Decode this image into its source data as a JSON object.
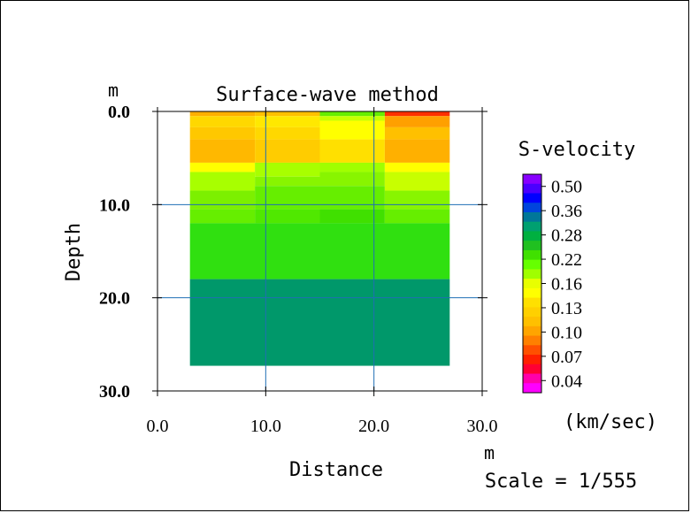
{
  "chart_data": {
    "type": "heatmap",
    "title": "Surface-wave method",
    "xlabel": "Distance",
    "ylabel": "Depth",
    "x_unit": "m",
    "y_unit": "m",
    "xlim": [
      0,
      30
    ],
    "ylim": [
      0,
      30
    ],
    "x_ticks": [
      "0.0",
      "10.0",
      "20.0",
      "30.0"
    ],
    "y_ticks": [
      "0.0",
      "10.0",
      "20.0",
      "30.0"
    ],
    "legend_title": "S-velocity",
    "legend_unit": "(km/sec)",
    "legend_labels": [
      "0.50",
      "0.36",
      "0.28",
      "0.22",
      "0.16",
      "0.13",
      "0.10",
      "0.07",
      "0.04"
    ],
    "legend_colors": [
      "#8800ff",
      "#4a00ff",
      "#0000ff",
      "#0044dd",
      "#007799",
      "#00a070",
      "#00b040",
      "#20c020",
      "#40e000",
      "#66ff00",
      "#a0ff00",
      "#e8ff00",
      "#ffff00",
      "#ffe000",
      "#ffd000",
      "#ffc000",
      "#ffa500",
      "#ff8000",
      "#ff5000",
      "#ff2000",
      "#ff0033",
      "#ff00aa",
      "#ff00ff"
    ],
    "scale_text": "Scale = 1/555",
    "cells": [
      {
        "x0": 3,
        "x1": 9,
        "y0": 0,
        "y1": 0.5,
        "color": "#ffb000"
      },
      {
        "x0": 3,
        "x1": 9,
        "y0": 0.5,
        "y1": 1.7,
        "color": "#ffd800"
      },
      {
        "x0": 3,
        "x1": 9,
        "y0": 1.7,
        "y1": 3.0,
        "color": "#ffc800"
      },
      {
        "x0": 3,
        "x1": 9,
        "y0": 3.0,
        "y1": 5.5,
        "color": "#ffb800"
      },
      {
        "x0": 3,
        "x1": 9,
        "y0": 5.5,
        "y1": 6.5,
        "color": "#ffff00"
      },
      {
        "x0": 3,
        "x1": 9,
        "y0": 6.5,
        "y1": 8.5,
        "color": "#a8ff00"
      },
      {
        "x0": 3,
        "x1": 9,
        "y0": 8.5,
        "y1": 10.5,
        "color": "#7cf000"
      },
      {
        "x0": 3,
        "x1": 9,
        "y0": 10.5,
        "y1": 12.0,
        "color": "#66ee00"
      },
      {
        "x0": 9,
        "x1": 15,
        "y0": 0,
        "y1": 0.5,
        "color": "#ffc000"
      },
      {
        "x0": 9,
        "x1": 15,
        "y0": 0.5,
        "y1": 1.7,
        "color": "#ffe800"
      },
      {
        "x0": 9,
        "x1": 15,
        "y0": 1.7,
        "y1": 3.0,
        "color": "#ffd800"
      },
      {
        "x0": 9,
        "x1": 15,
        "y0": 3.0,
        "y1": 5.5,
        "color": "#ffcc00"
      },
      {
        "x0": 9,
        "x1": 15,
        "y0": 5.5,
        "y1": 7.0,
        "color": "#a8ff00"
      },
      {
        "x0": 9,
        "x1": 15,
        "y0": 7.0,
        "y1": 8.0,
        "color": "#88f500"
      },
      {
        "x0": 9,
        "x1": 15,
        "y0": 8.0,
        "y1": 10.5,
        "color": "#66ee00"
      },
      {
        "x0": 9,
        "x1": 15,
        "y0": 10.5,
        "y1": 12.0,
        "color": "#50e800"
      },
      {
        "x0": 15,
        "x1": 21,
        "y0": 0,
        "y1": 0.5,
        "color": "#66ee00"
      },
      {
        "x0": 15,
        "x1": 21,
        "y0": 0.5,
        "y1": 1.0,
        "color": "#c8ff00"
      },
      {
        "x0": 15,
        "x1": 21,
        "y0": 1.0,
        "y1": 3.0,
        "color": "#ffff00"
      },
      {
        "x0": 15,
        "x1": 21,
        "y0": 3.0,
        "y1": 5.5,
        "color": "#ffe000"
      },
      {
        "x0": 15,
        "x1": 21,
        "y0": 5.5,
        "y1": 6.5,
        "color": "#a0ff00"
      },
      {
        "x0": 15,
        "x1": 21,
        "y0": 6.5,
        "y1": 8.0,
        "color": "#88f500"
      },
      {
        "x0": 15,
        "x1": 21,
        "y0": 8.0,
        "y1": 10.5,
        "color": "#66ee00"
      },
      {
        "x0": 15,
        "x1": 21,
        "y0": 10.5,
        "y1": 12.0,
        "color": "#40e000"
      },
      {
        "x0": 21,
        "x1": 27,
        "y0": 0,
        "y1": 0.5,
        "color": "#ff3000"
      },
      {
        "x0": 21,
        "x1": 27,
        "y0": 0.5,
        "y1": 1.7,
        "color": "#ffa000"
      },
      {
        "x0": 21,
        "x1": 27,
        "y0": 1.7,
        "y1": 3.0,
        "color": "#ffc000"
      },
      {
        "x0": 21,
        "x1": 27,
        "y0": 3.0,
        "y1": 5.5,
        "color": "#ffb000"
      },
      {
        "x0": 21,
        "x1": 27,
        "y0": 5.5,
        "y1": 6.5,
        "color": "#ffff00"
      },
      {
        "x0": 21,
        "x1": 27,
        "y0": 6.5,
        "y1": 8.5,
        "color": "#c8ff00"
      },
      {
        "x0": 21,
        "x1": 27,
        "y0": 8.5,
        "y1": 10.5,
        "color": "#88f500"
      },
      {
        "x0": 21,
        "x1": 27,
        "y0": 10.5,
        "y1": 12.0,
        "color": "#66ee00"
      },
      {
        "x0": 3,
        "x1": 27,
        "y0": 12.0,
        "y1": 18.0,
        "color": "#30e010"
      },
      {
        "x0": 3,
        "x1": 27,
        "y0": 18.0,
        "y1": 27.3,
        "color": "#00986a"
      }
    ]
  }
}
